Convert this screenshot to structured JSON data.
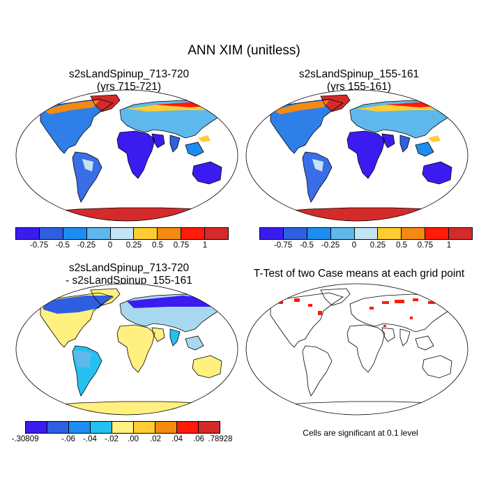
{
  "title": "ANN XIM (unitless)",
  "panels": [
    {
      "line1": "s2sLandSpinup_713-720",
      "line2": "(yrs 715-721)"
    },
    {
      "line1": "s2sLandSpinup_155-161",
      "line2": "(yrs 155-161)"
    },
    {
      "line1": "s2sLandSpinup_713-720",
      "line2": "- s2sLandSpinup_155-161"
    },
    {
      "line1": "T-Test of two Case means at each grid point",
      "line2": ""
    }
  ],
  "colorbar_top": {
    "colors": [
      "#3a1cf0",
      "#2f5fe0",
      "#1e8cf0",
      "#5fb8ec",
      "#c4e4f4",
      "#ffcc33",
      "#f58a10",
      "#ff1a0a",
      "#d42a2a"
    ],
    "labels": [
      "-0.75",
      "-0.5",
      "-0.25",
      "0",
      "0.25",
      "0.5",
      "0.75",
      "1"
    ]
  },
  "colorbar_bottom": {
    "colors": [
      "#3a1cf0",
      "#2f5fe0",
      "#1e8cf0",
      "#24c0f2",
      "#fff080",
      "#ffcc33",
      "#f58a10",
      "#ff1a0a",
      "#d42a2a"
    ],
    "labels": [
      "-.30809",
      "-.06",
      "-.04",
      "-.02",
      ".00",
      ".02",
      ".04",
      ".06",
      ".78928"
    ]
  },
  "note": "Cells are significant at 0.1 level"
}
